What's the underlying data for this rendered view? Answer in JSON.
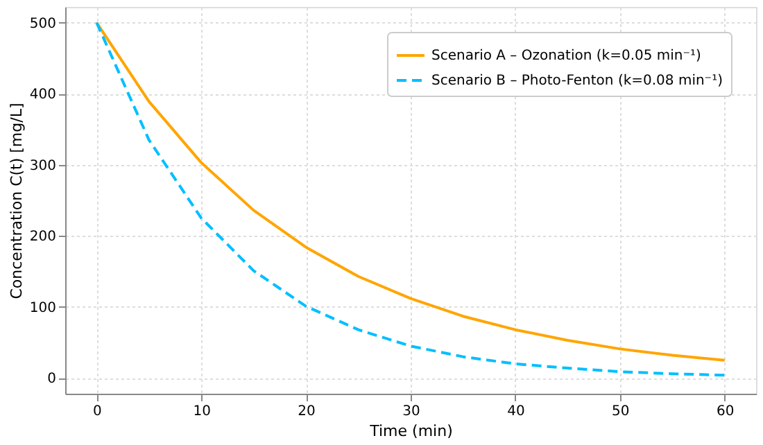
{
  "chart_data": {
    "type": "line",
    "xlabel": "Time (min)",
    "ylabel": "Concentration C(t) [mg/L]",
    "x": [
      0,
      5,
      10,
      15,
      20,
      25,
      30,
      35,
      40,
      45,
      50,
      55,
      60
    ],
    "series": [
      {
        "name": "Scenario A – Ozonation (k=0.05 min⁻¹)",
        "color": "#ffa500",
        "line_style": "solid",
        "values": [
          500,
          389,
          303,
          236,
          184,
          143,
          112,
          87,
          68,
          53,
          41,
          32,
          25
        ]
      },
      {
        "name": "Scenario B – Photo-Fenton (k=0.08 min⁻¹)",
        "color": "#00bfff",
        "line_style": "dashed",
        "values": [
          500,
          335,
          225,
          151,
          101,
          68,
          45,
          30,
          20,
          14,
          9,
          6,
          4
        ]
      }
    ],
    "xlim": [
      -3,
      63
    ],
    "ylim": [
      -22,
      522
    ],
    "xticks": [
      0,
      10,
      20,
      30,
      40,
      50,
      60
    ],
    "yticks": [
      0,
      100,
      200,
      300,
      400,
      500
    ],
    "grid": true,
    "legend": "top right",
    "marker": "none"
  }
}
